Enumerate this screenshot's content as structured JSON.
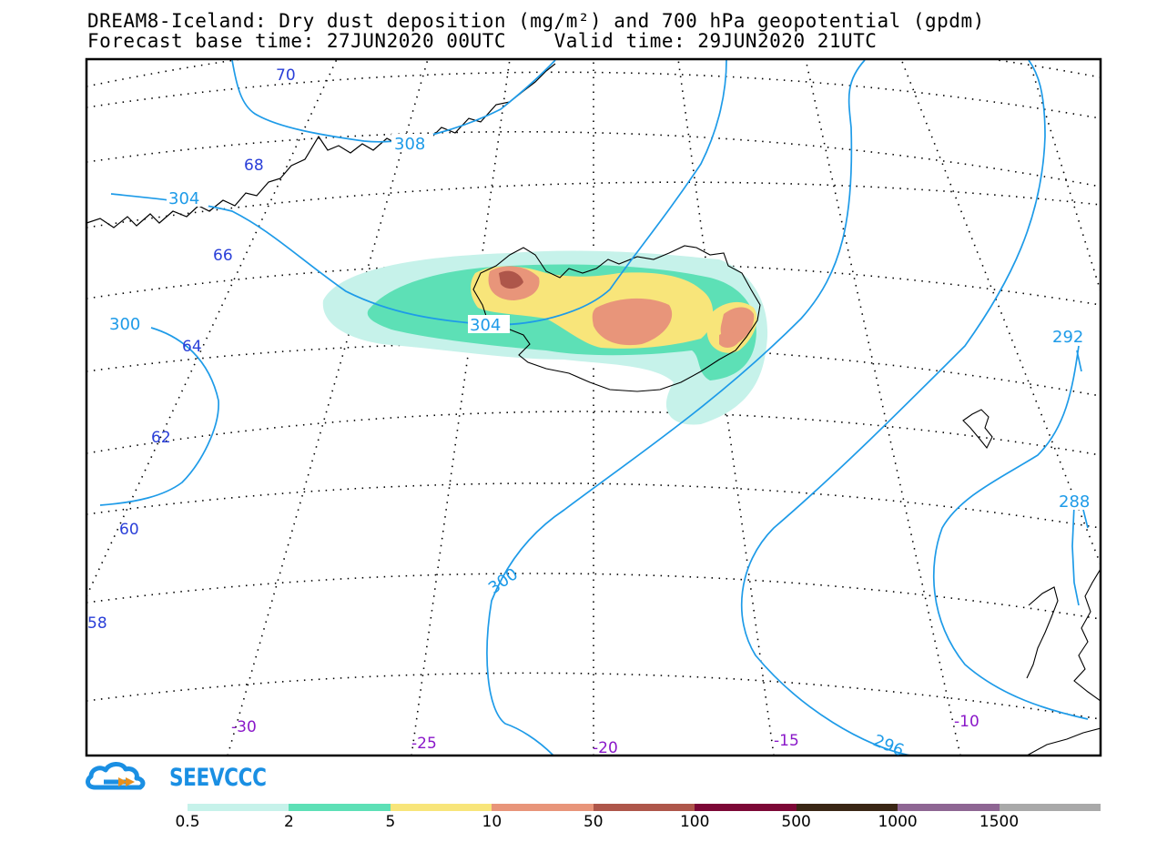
{
  "title": {
    "line1": "DREAM8-Iceland: Dry dust deposition (mg/m²) and 700 hPa geopotential (gpdm)",
    "line2": "Forecast base time: 27JUN2020 00UTC    Valid time: 29JUN2020 21UTC"
  },
  "map": {
    "latitude_labels": [
      "70",
      "68",
      "66",
      "64",
      "62",
      "60",
      "58"
    ],
    "longitude_labels": [
      "-30",
      "-25",
      "-20",
      "-15",
      "-10"
    ],
    "contour_labels": [
      "308",
      "304",
      "304",
      "300",
      "300",
      "296",
      "292",
      "288"
    ],
    "contour_color": "#1e9be8",
    "lat_label_color": "#2a3fd8",
    "lon_label_color": "#8a18c9"
  },
  "logo": {
    "text": "SEEVCCC",
    "icon": "cloud-logo-icon"
  },
  "colorbar": {
    "labels": [
      "0.5",
      "2",
      "5",
      "10",
      "50",
      "100",
      "500",
      "1000",
      "1500"
    ],
    "colors": [
      "#c6f2ea",
      "#5de0b6",
      "#f8e57a",
      "#e8957a",
      "#ae564a",
      "#7c0836",
      "#3a2615",
      "#8e6693",
      "#a9a9a9"
    ]
  }
}
